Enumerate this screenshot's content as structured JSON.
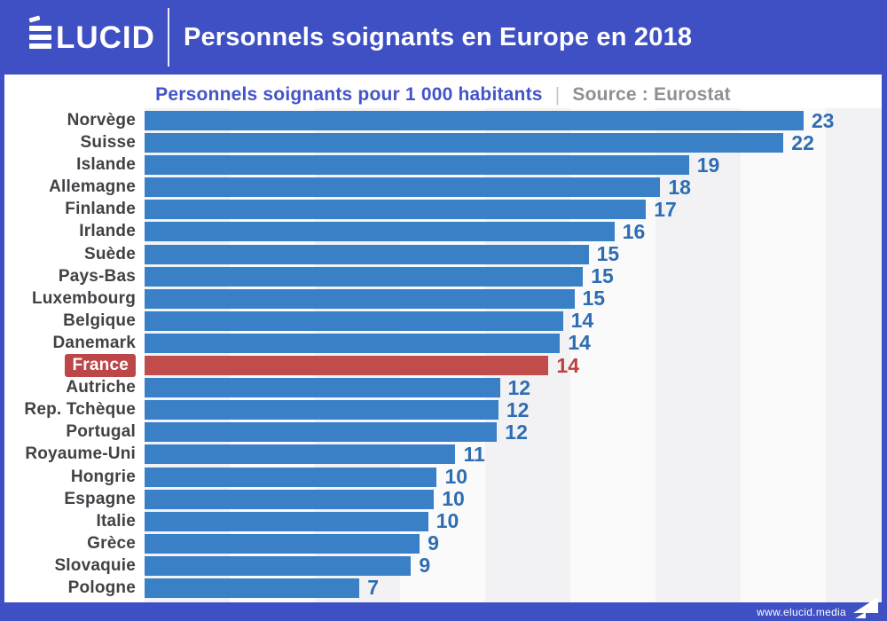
{
  "header": {
    "logo_text": "LUCID",
    "logo_full": "ÉLUCID",
    "title": "Personnels soignants en Europe en 2018"
  },
  "subtitle": {
    "text": "Personnels soignants pour 1 000 habitants",
    "separator": "|",
    "source": "Source : Eurostat"
  },
  "footer": {
    "url": "www.elucid.media"
  },
  "colors": {
    "brand_blue": "#3e50c4",
    "bar_blue": "#3a80c6",
    "value_blue": "#2f6db3",
    "highlight_red_bar": "#c24c4c",
    "highlight_red_label_bg": "#bc4648",
    "highlight_red_value": "#c13f41",
    "country_label_gray": "#414146",
    "source_gray": "#8f9094",
    "stripe_gray": "#f2f2f4",
    "stripe_light": "#fafafa"
  },
  "chart_data": {
    "type": "bar",
    "orientation": "horizontal",
    "title": "Personnels soignants en Europe en 2018",
    "subtitle": "Personnels soignants pour 1 000 habitants",
    "source": "Source : Eurostat",
    "unit": "personnels soignants pour 1 000 habitants",
    "xlim": [
      0,
      25
    ],
    "grid": "vertical-bands",
    "value_labels": "end-of-bar",
    "categories": [
      "Norvège",
      "Suisse",
      "Islande",
      "Allemagne",
      "Finlande",
      "Irlande",
      "Suède",
      "Pays-Bas",
      "Luxembourg",
      "Belgique",
      "Danemark",
      "France",
      "Autriche",
      "Rep. Tchèque",
      "Portugal",
      "Royaume-Uni",
      "Hongrie",
      "Espagne",
      "Italie",
      "Grèce",
      "Slovaquie",
      "Pologne"
    ],
    "values": [
      23,
      22,
      19,
      18,
      17,
      16,
      15,
      15,
      15,
      14,
      14,
      14,
      12,
      12,
      12,
      11,
      10,
      10,
      10,
      9,
      9,
      7
    ],
    "bar_lengths_estimate": [
      23.0,
      22.3,
      19.0,
      18.0,
      17.5,
      16.4,
      15.5,
      15.3,
      15.0,
      14.6,
      14.5,
      14.1,
      12.4,
      12.35,
      12.3,
      10.85,
      10.2,
      10.1,
      9.9,
      9.6,
      9.3,
      7.5
    ],
    "highlight": {
      "country": "France",
      "index": 11
    }
  }
}
